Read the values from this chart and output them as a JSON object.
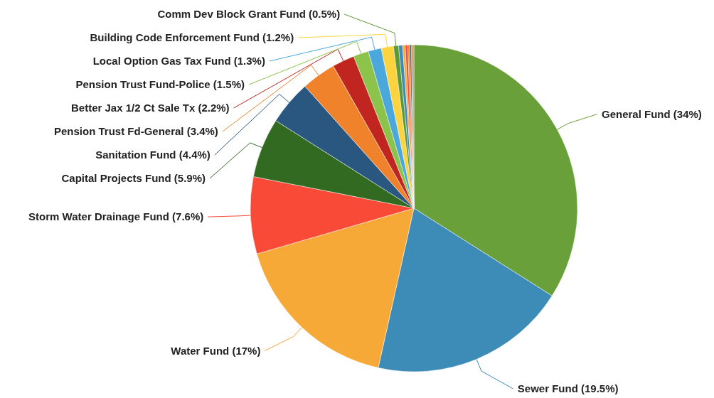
{
  "chart_data": {
    "type": "pie",
    "categories": [
      "General Fund (34%)",
      "Sewer Fund (19.5%)",
      "Water Fund (17%)",
      "Storm Water Drainage Fund (7.6%)",
      "Capital Projects Fund (5.9%)",
      "Sanitation Fund (4.4%)",
      "Pension Trust Fd-General (3.4%)",
      "Better Jax 1/2 Ct Sale Tx (2.2%)",
      "Pension Trust Fund-Police (1.5%)",
      "Local Option Gas Tax Fund (1.3%)",
      "Building Code Enforcement Fund (1.2%)",
      "Comm Dev Block Grant Fund (0.5%)",
      null,
      null,
      null,
      null,
      null,
      null,
      null
    ],
    "values": [
      34,
      19.5,
      17,
      7.6,
      5.9,
      4.4,
      3.4,
      2.2,
      1.5,
      1.3,
      1.2,
      0.5,
      0.4,
      0.25,
      0.25,
      0.2,
      0.15,
      0.1,
      0.15
    ],
    "colors": [
      "#6aa03a",
      "#3d8bb7",
      "#f6a936",
      "#f84a36",
      "#336a22",
      "#2a5780",
      "#f0822b",
      "#c0261f",
      "#8cc34a",
      "#4aa8dc",
      "#fdd440",
      "#5b9a36",
      "#3d8bb7",
      "#f6a936",
      "#f84a36",
      "#f0822b",
      "#2a5780",
      "#336a22",
      "#f0822b"
    ]
  }
}
